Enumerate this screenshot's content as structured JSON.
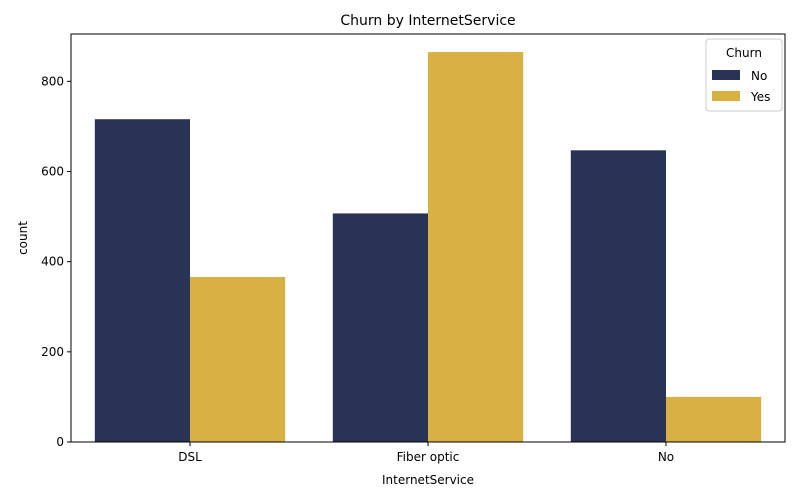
{
  "chart_data": {
    "type": "bar",
    "title": "Churn by InternetService",
    "xlabel": "InternetService",
    "ylabel": "count",
    "categories": [
      "DSL",
      "Fiber optic",
      "No"
    ],
    "series": [
      {
        "name": "No",
        "color": "#283355",
        "values": [
          716,
          507,
          647
        ]
      },
      {
        "name": "Yes",
        "color": "#d8b043",
        "values": [
          366,
          865,
          100
        ]
      }
    ],
    "ylim": [
      0,
      905
    ],
    "yticks": [
      0,
      200,
      400,
      600,
      800
    ],
    "legend": {
      "title": "Churn",
      "position": "top-right"
    },
    "grid": false
  }
}
